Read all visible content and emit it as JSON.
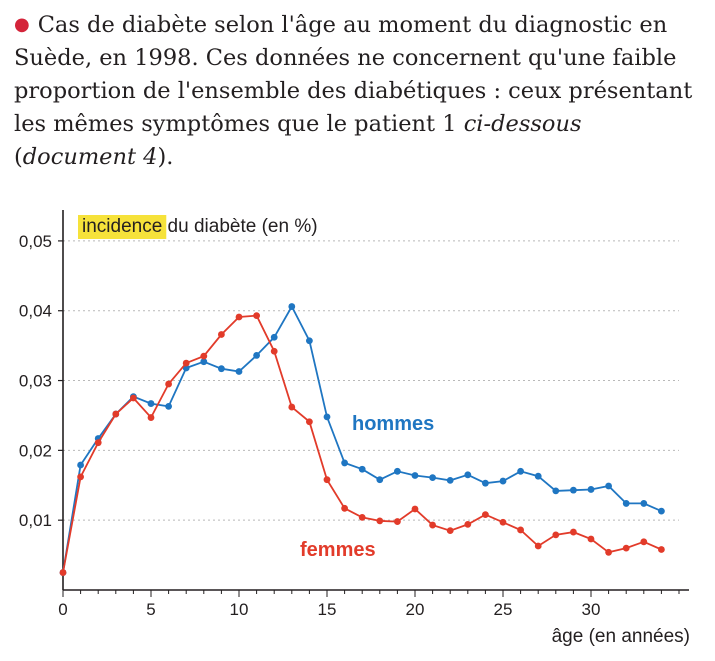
{
  "caption": {
    "part1": "Cas de diabète selon l'âge au moment du diagnostic en Suède, en 1998. Ces données ne concernent qu'une faible proportion de l'ensemble des diabétiques : ceux présentant les mêmes symptômes que le patient 1 ",
    "italic1": "ci-dessous",
    "part2": " (",
    "italic2": "document 4",
    "part3": ")."
  },
  "colors": {
    "hommes": "#1f76c2",
    "femmes": "#e23b2a",
    "highlight": "#f6e23a",
    "grid": "#b9b9b9",
    "bullet": "#d4243a"
  },
  "chart_data": {
    "type": "line",
    "ylabel_highlight": "incidence",
    "ylabel_rest": " du diabète (en %)",
    "xlabel": "âge (en années)",
    "xlim": [
      0,
      35
    ],
    "ylim": [
      0,
      0.055
    ],
    "x_ticks": [
      0,
      5,
      10,
      15,
      20,
      25,
      30
    ],
    "y_ticks": [
      "0,01",
      "0,02",
      "0,03",
      "0,04",
      "0,05"
    ],
    "y_tick_values": [
      0.01,
      0.02,
      0.03,
      0.04,
      0.05
    ],
    "grid": "horizontal dotted",
    "x": [
      0,
      1,
      2,
      3,
      4,
      5,
      6,
      7,
      8,
      9,
      10,
      11,
      12,
      13,
      14,
      15,
      16,
      17,
      18,
      19,
      20,
      21,
      22,
      23,
      24,
      25,
      26,
      27,
      28,
      29,
      30,
      31,
      32,
      33,
      34
    ],
    "series": [
      {
        "name": "hommes",
        "values": [
          0.0025,
          0.0179,
          0.0217,
          0.0252,
          0.0277,
          0.0267,
          0.0263,
          0.0318,
          0.0327,
          0.0317,
          0.0313,
          0.0336,
          0.0362,
          0.0406,
          0.0357,
          0.0248,
          0.0182,
          0.0173,
          0.0158,
          0.017,
          0.0164,
          0.0161,
          0.0157,
          0.0165,
          0.0153,
          0.0156,
          0.017,
          0.0163,
          0.0142,
          0.0143,
          0.0144,
          0.0149,
          0.0124,
          0.0124,
          0.0113
        ]
      },
      {
        "name": "femmes",
        "values": [
          0.0025,
          0.0162,
          0.0211,
          0.0252,
          0.0275,
          0.0247,
          0.0295,
          0.0325,
          0.0335,
          0.0366,
          0.0391,
          0.0393,
          0.0342,
          0.0262,
          0.0241,
          0.0158,
          0.0117,
          0.0104,
          0.0099,
          0.0098,
          0.0116,
          0.0093,
          0.0085,
          0.0094,
          0.0108,
          0.0097,
          0.0086,
          0.0063,
          0.0079,
          0.0083,
          0.0073,
          0.0054,
          0.006,
          0.0069,
          0.0058
        ]
      }
    ]
  }
}
